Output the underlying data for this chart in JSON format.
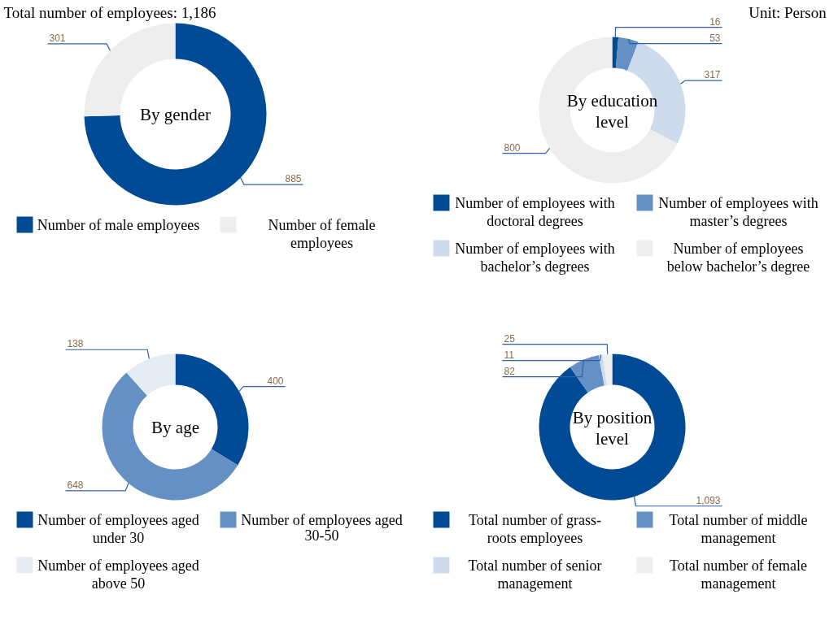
{
  "chart_data": [
    {
      "type": "donut",
      "title": "By gender",
      "annotations": [
        "Total number of employees: 1,186"
      ],
      "categories": [
        "Number of male employees",
        "Number of female employees"
      ],
      "values": [
        885,
        301
      ],
      "value_labels": [
        "885",
        "301"
      ],
      "colors": [
        "#004a96",
        "#eeeeee"
      ],
      "legend": "bottom"
    },
    {
      "type": "donut",
      "title": "By education level",
      "annotations": [
        "Unit:  Person"
      ],
      "categories": [
        "Number of employees with doctoral degrees",
        "Number of employees with master’s degrees",
        "Number of employees with bachelor’s degrees",
        "Number of employees below bachelor’s degree"
      ],
      "values": [
        16,
        53,
        317,
        800
      ],
      "value_labels": [
        "16",
        "53",
        "317",
        "800"
      ],
      "colors": [
        "#004a96",
        "#6590c3",
        "#cddbec",
        "#eeeeee"
      ],
      "legend": "bottom"
    },
    {
      "type": "donut",
      "title": "By age",
      "categories": [
        "Number of employees aged under 30",
        "Number of employees aged 30-50",
        "Number of employees aged above 50"
      ],
      "values": [
        400,
        648,
        138
      ],
      "value_labels": [
        "400",
        "648",
        "138"
      ],
      "colors": [
        "#004a96",
        "#6590c3",
        "#e6ecf4"
      ],
      "legend": "bottom"
    },
    {
      "type": "donut",
      "title": "By position level",
      "categories": [
        "Total number of grass-roots employees",
        "Total number of middle management",
        "Total number of senior management",
        "Total number of female management"
      ],
      "values": [
        1093,
        82,
        11,
        25
      ],
      "value_labels": [
        "1,093",
        "82",
        "11",
        "25"
      ],
      "colors": [
        "#004a96",
        "#6590c3",
        "#cddbec",
        "#eeeeee"
      ],
      "legend": "bottom"
    }
  ]
}
